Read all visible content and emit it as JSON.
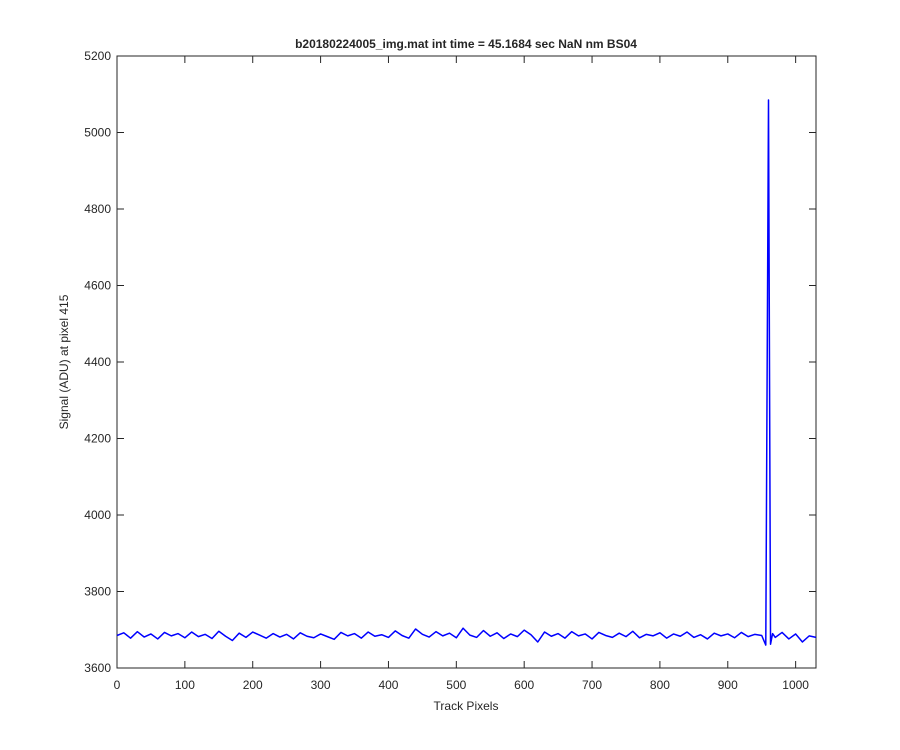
{
  "chart_data": {
    "type": "line",
    "title": "b20180224005_img.mat int time = 45.1684 sec  NaN nm BS04",
    "x_label": "Track Pixels",
    "y_label": "Signal (ADU) at pixel 415",
    "x": [
      0,
      10,
      20,
      30,
      40,
      50,
      60,
      70,
      80,
      90,
      100,
      110,
      120,
      130,
      140,
      150,
      160,
      170,
      180,
      190,
      200,
      210,
      220,
      230,
      240,
      250,
      260,
      270,
      280,
      290,
      300,
      310,
      320,
      330,
      340,
      350,
      360,
      370,
      380,
      390,
      400,
      410,
      420,
      430,
      440,
      450,
      460,
      470,
      480,
      490,
      500,
      510,
      520,
      530,
      540,
      550,
      560,
      570,
      580,
      590,
      600,
      610,
      620,
      630,
      640,
      650,
      660,
      670,
      680,
      690,
      700,
      710,
      720,
      730,
      740,
      750,
      760,
      770,
      780,
      790,
      800,
      810,
      820,
      830,
      840,
      850,
      860,
      870,
      880,
      890,
      900,
      910,
      920,
      930,
      940,
      950,
      956,
      960,
      963,
      966,
      970,
      980,
      990,
      1000,
      1010,
      1020,
      1030
    ],
    "series": [
      {
        "name": "Signal",
        "color": "#0000ff",
        "values": [
          3685,
          3692,
          3678,
          3695,
          3681,
          3689,
          3676,
          3693,
          3684,
          3690,
          3679,
          3694,
          3682,
          3688,
          3677,
          3696,
          3683,
          3672,
          3691,
          3680,
          3694,
          3686,
          3678,
          3690,
          3681,
          3688,
          3676,
          3692,
          3683,
          3679,
          3689,
          3682,
          3675,
          3693,
          3684,
          3690,
          3678,
          3694,
          3683,
          3687,
          3680,
          3697,
          3685,
          3678,
          3702,
          3688,
          3681,
          3695,
          3684,
          3691,
          3679,
          3704,
          3686,
          3680,
          3698,
          3683,
          3692,
          3677,
          3689,
          3682,
          3699,
          3687,
          3668,
          3694,
          3683,
          3690,
          3678,
          3695,
          3684,
          3689,
          3676,
          3693,
          3685,
          3680,
          3691,
          3682,
          3696,
          3679,
          3688,
          3684,
          3692,
          3678,
          3689,
          3683,
          3694,
          3680,
          3687,
          3676,
          3691,
          3684,
          3689,
          3679,
          3693,
          3682,
          3688,
          3685,
          3660,
          5085,
          3662,
          3690,
          3680,
          3693,
          3676,
          3689,
          3668,
          3684,
          3680
        ]
      }
    ],
    "xlim": [
      0,
      1030
    ],
    "ylim": [
      3600,
      5200
    ],
    "xticks": [
      0,
      100,
      200,
      300,
      400,
      500,
      600,
      700,
      800,
      900,
      1000
    ],
    "yticks": [
      3600,
      3800,
      4000,
      4200,
      4400,
      4600,
      4800,
      5000,
      5200
    ],
    "grid": false
  }
}
